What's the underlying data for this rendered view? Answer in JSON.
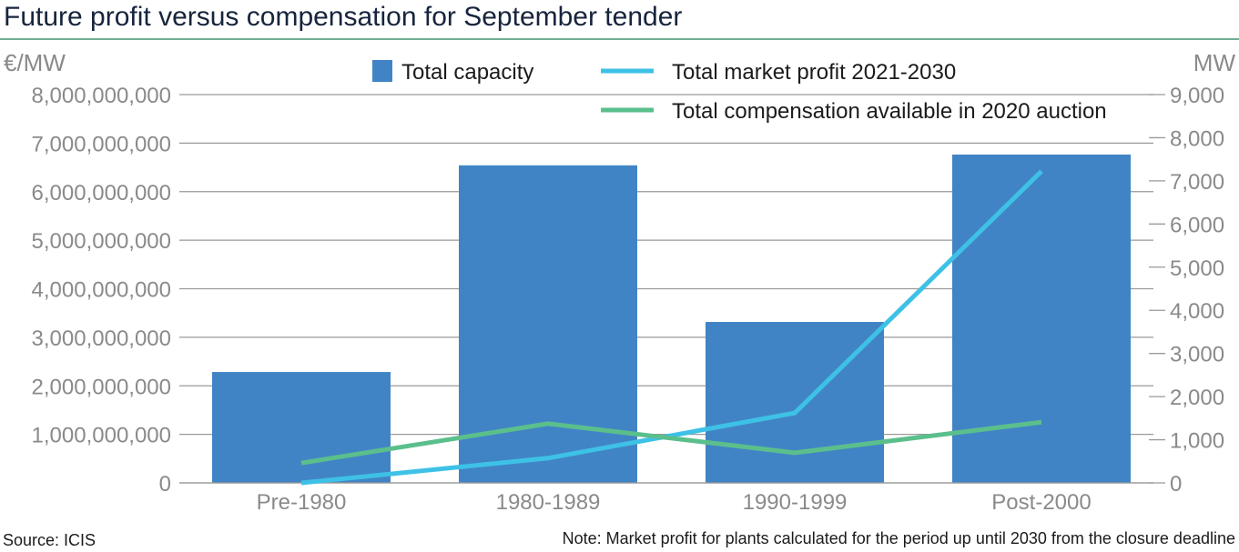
{
  "chart_data": {
    "type": "bar",
    "title": "Future profit versus compensation for September tender",
    "categories": [
      "Pre-1980",
      "1980-1989",
      "1990-1999",
      "Post-2000"
    ],
    "left_axis": {
      "label": "€/MW",
      "ylim": [
        0,
        8000000000
      ],
      "ticks": [
        "0",
        "1,000,000,000",
        "2,000,000,000",
        "3,000,000,000",
        "4,000,000,000",
        "5,000,000,000",
        "6,000,000,000",
        "7,000,000,000",
        "8,000,000,000"
      ]
    },
    "right_axis": {
      "label": "MW",
      "ylim": [
        0,
        9000
      ],
      "ticks": [
        "0",
        "1,000",
        "2,000",
        "3,000",
        "4,000",
        "5,000",
        "6,000",
        "7,000",
        "8,000",
        "9,000"
      ]
    },
    "series": [
      {
        "name": "Total capacity",
        "type": "bar",
        "axis": "right",
        "color": "#4184c5",
        "values": [
          2570,
          7360,
          3730,
          7610
        ]
      },
      {
        "name": "Total market profit 2021-2030",
        "type": "line",
        "axis": "left",
        "color": "#3ec1e6",
        "values": [
          0,
          510000000,
          1440000000,
          6420000000
        ]
      },
      {
        "name": "Total compensation available in 2020 auction",
        "type": "line",
        "axis": "left",
        "color": "#5bbf8c",
        "values": [
          410000000,
          1220000000,
          620000000,
          1250000000
        ]
      }
    ],
    "grid": true,
    "legend": "top"
  },
  "source": "Source: ICIS",
  "note": "Note: Market profit for plants calculated for the period up until 2030 from the closure deadline"
}
